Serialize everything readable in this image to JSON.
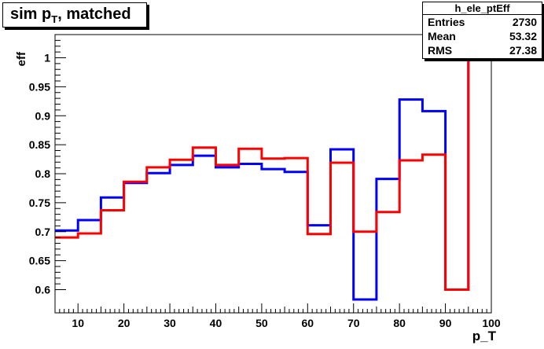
{
  "title": {
    "main": "sim p",
    "sub": "T",
    "suffix": ", matched"
  },
  "stats": {
    "name": "h_ele_ptEff",
    "rows": [
      {
        "label": "Entries",
        "value": "2730"
      },
      {
        "label": "Mean",
        "value": "53.32"
      },
      {
        "label": "RMS",
        "value": "27.38"
      }
    ]
  },
  "chart_data": {
    "type": "line",
    "step": true,
    "xlabel": "p_T",
    "ylabel": "eff",
    "xlim": [
      5,
      100
    ],
    "ylim": [
      0.56,
      1.04
    ],
    "xticks": [
      10,
      20,
      30,
      40,
      50,
      60,
      70,
      80,
      90,
      100
    ],
    "yticks": [
      0.6,
      0.65,
      0.7,
      0.75,
      0.8,
      0.85,
      0.9,
      0.95,
      1
    ],
    "ytick_labels": [
      "0.6",
      "0.65",
      "0.7",
      "0.75",
      "0.8",
      "0.85",
      "0.9",
      "0.95",
      "1"
    ],
    "bin_edges": [
      5,
      10,
      15,
      20,
      25,
      30,
      35,
      40,
      45,
      50,
      55,
      60,
      65,
      70,
      75,
      80,
      85,
      90,
      95,
      100
    ],
    "series": [
      {
        "color": "#0000ff",
        "values": [
          0.702,
          0.72,
          0.759,
          0.784,
          0.801,
          0.815,
          0.831,
          0.811,
          0.817,
          0.808,
          0.803,
          0.711,
          0.842,
          0.583,
          0.791,
          0.928,
          0.908,
          0.6,
          1.0
        ]
      },
      {
        "color": "#ff0000",
        "values": [
          0.69,
          0.697,
          0.737,
          0.786,
          0.811,
          0.824,
          0.845,
          0.815,
          0.843,
          0.826,
          0.827,
          0.696,
          0.819,
          0.7,
          0.734,
          0.823,
          0.833,
          0.6,
          1.0
        ]
      }
    ],
    "grid": false,
    "legend": "none"
  }
}
